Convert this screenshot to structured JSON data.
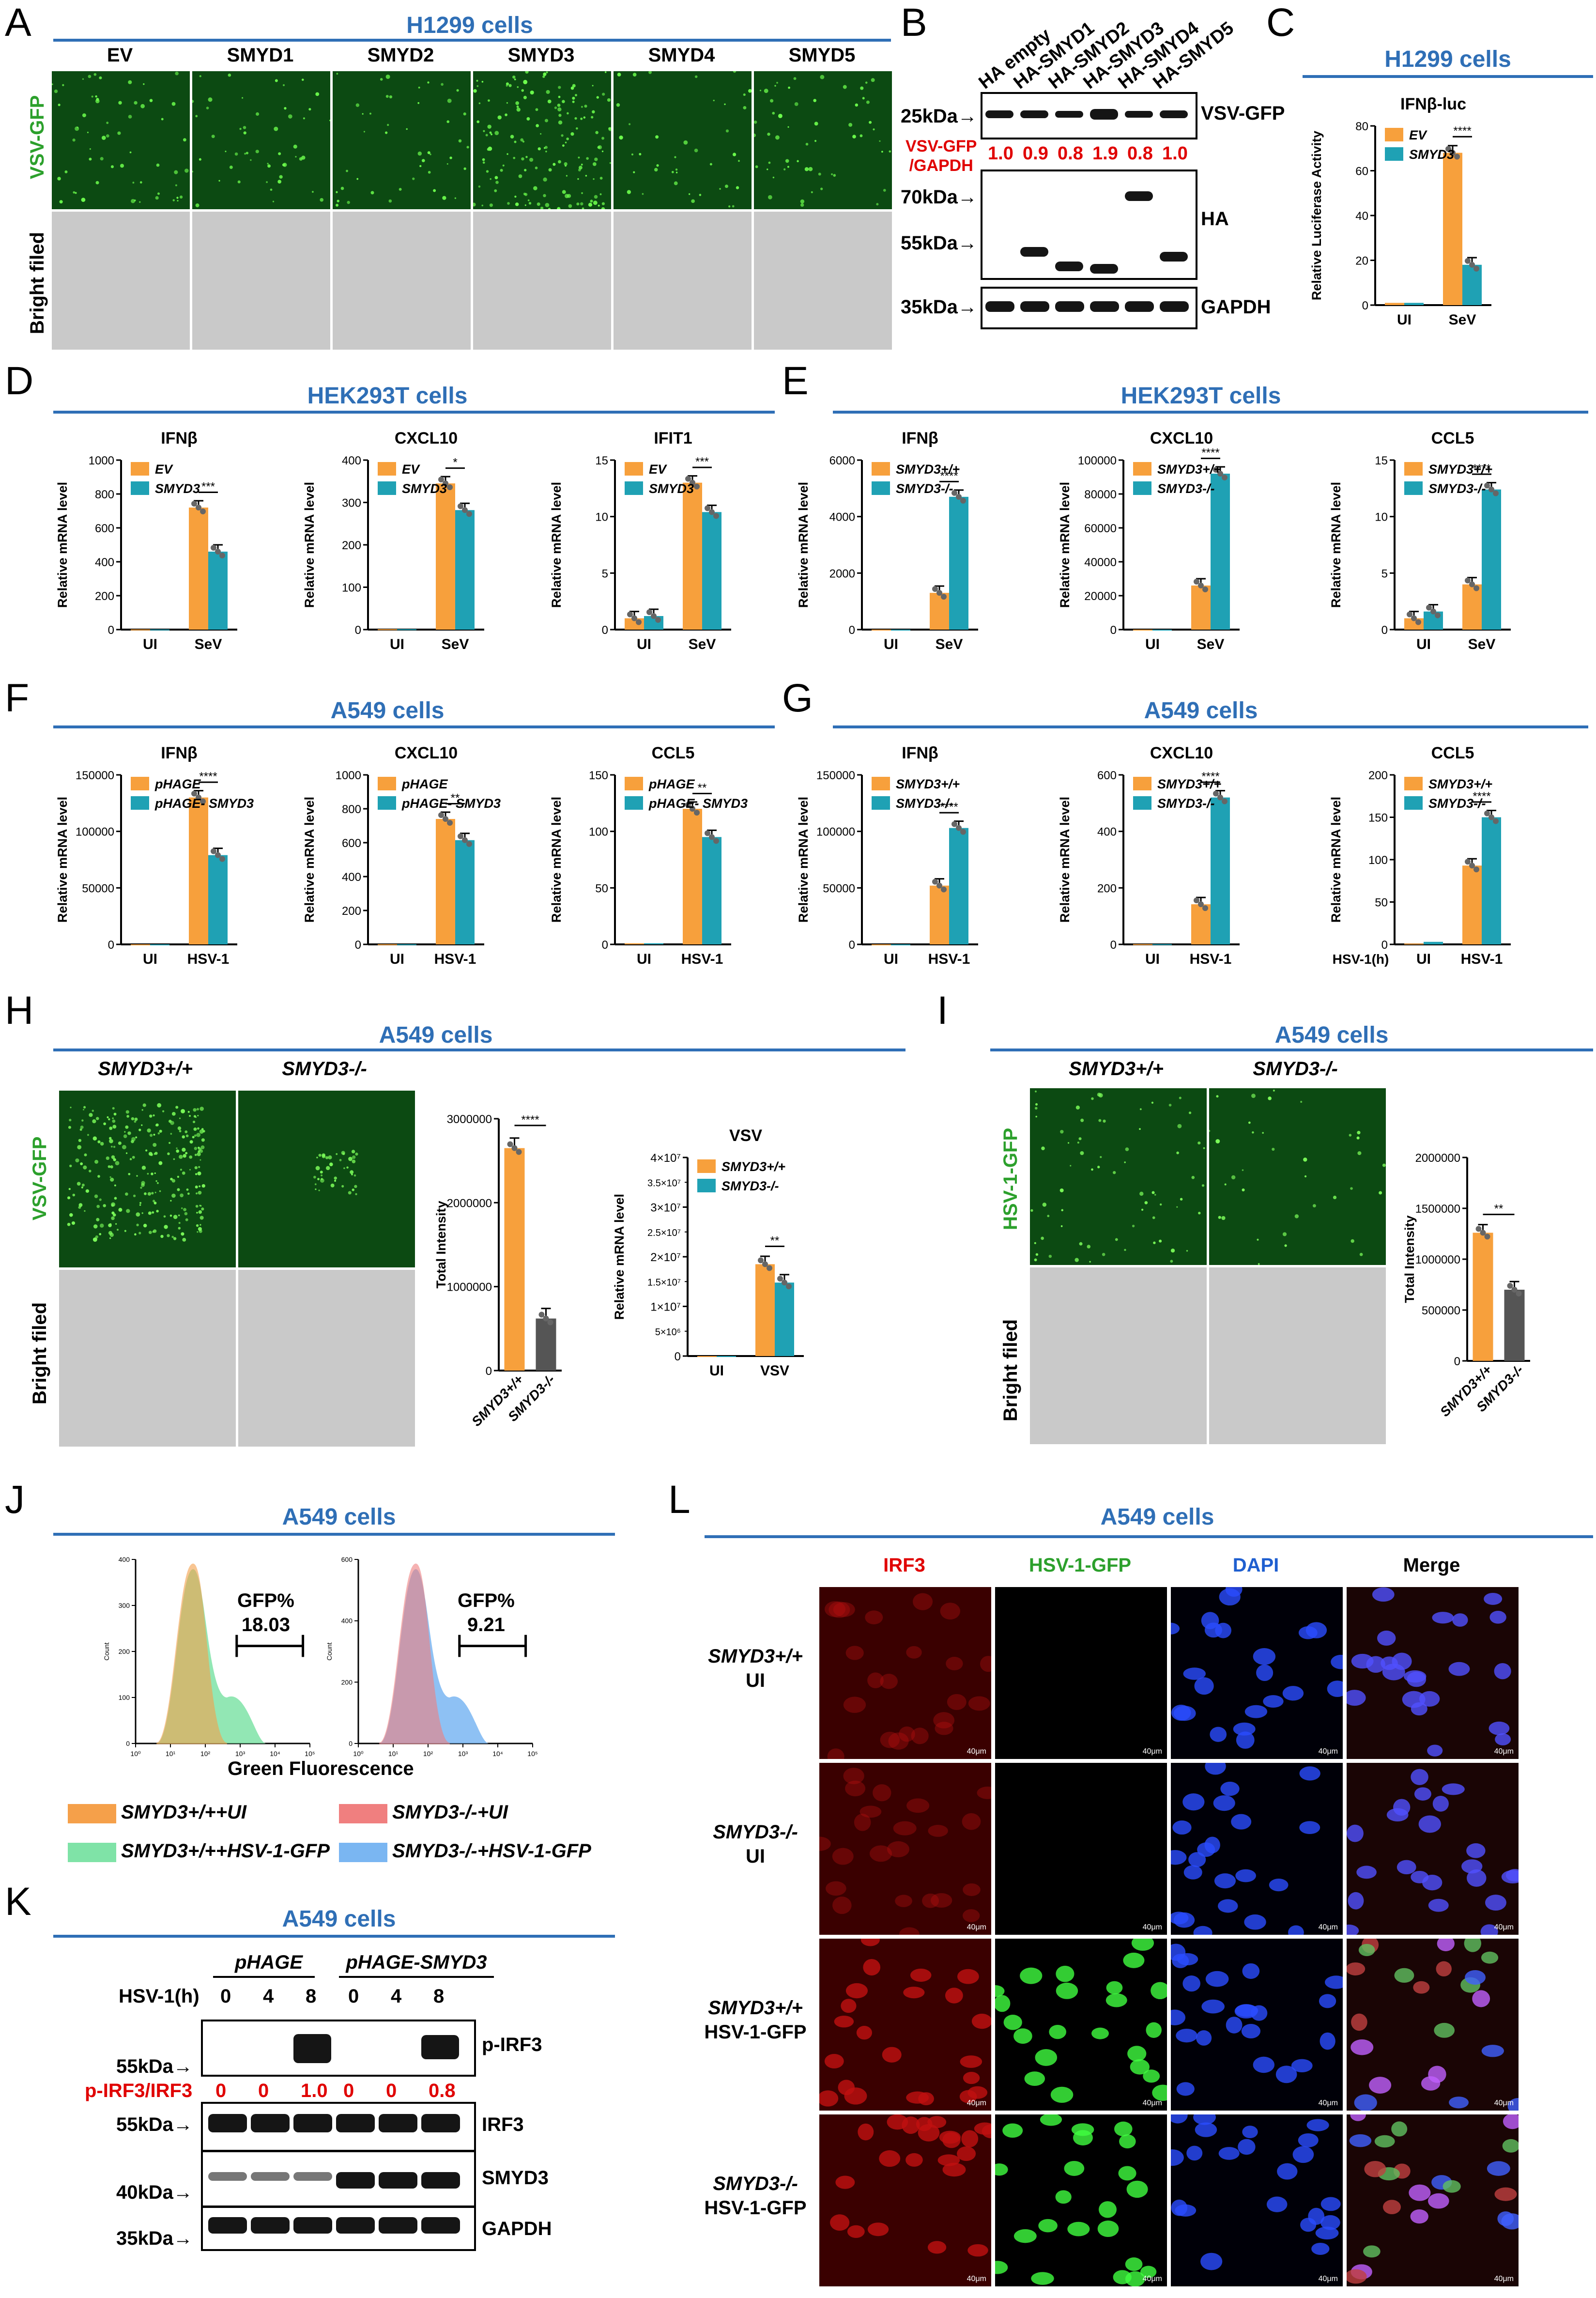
{
  "panels": [
    "A",
    "B",
    "C",
    "D",
    "E",
    "F",
    "G",
    "H",
    "I",
    "J",
    "K",
    "L"
  ],
  "titles": {
    "A": "H1299 cells",
    "C": "H1299 cells",
    "D": "HEK293T cells",
    "E": "HEK293T cells",
    "F": "A549 cells",
    "G": "A549 cells",
    "H": "A549 cells",
    "I": "A549 cells",
    "J": "A549 cells",
    "K": "A549 cells",
    "L": "A549 cells"
  },
  "panelA": {
    "columns": [
      "EV",
      "SMYD1",
      "SMYD2",
      "SMYD3",
      "SMYD4",
      "SMYD5"
    ],
    "row1": "VSV-GFP",
    "row2": "Bright filed"
  },
  "panelB": {
    "lanes": [
      "HA empty",
      "HA-SMYD1",
      "HA-SMYD2",
      "HA-SMYD3",
      "HA-SMYD4",
      "HA-SMYD5"
    ],
    "mw": [
      "25kDa",
      "70kDa",
      "55kDa",
      "35kDa"
    ],
    "labels": [
      "VSV-GFP",
      "HA",
      "GAPDH"
    ],
    "ratio_label": "VSV-GFP /GAPDH",
    "ratio_l1": "VSV-GFP",
    "ratio_l2": "/GAPDH",
    "ratios": [
      "1.0",
      "0.9",
      "0.8",
      "1.9",
      "0.8",
      "1.0"
    ]
  },
  "panelH": {
    "col1": "SMYD3+/+",
    "col2": "SMYD3-/-",
    "row1": "VSV-GFP",
    "row2": "Bright filed"
  },
  "panelI": {
    "col1": "SMYD3+/+",
    "col2": "SMYD3-/-",
    "row1": "HSV-1-GFP",
    "row2": "Bright filed"
  },
  "panelJ": {
    "gfp1": "GFP%",
    "val1": "18.03",
    "gfp2": "GFP%",
    "val2": "9.21",
    "xlabel": "Green Fluorescence",
    "ylabel": "Count",
    "legend": [
      "SMYD3+/++UI",
      "SMYD3-/-+UI",
      "SMYD3+/++HSV-1-GFP",
      "SMYD3-/-+HSV-1-GFP"
    ],
    "legend_colors": [
      "#f5a04a",
      "#f07f7f",
      "#7fe3a7",
      "#7ab6f2"
    ],
    "yticks1": [
      "0",
      "100",
      "200",
      "300",
      "400"
    ],
    "yticks2": [
      "0",
      "200",
      "400",
      "600"
    ]
  },
  "panelK": {
    "groups": [
      "pHAGE",
      "pHAGE-SMYD3"
    ],
    "hsv_label": "HSV-1(h)",
    "times": [
      "0",
      "4",
      "8",
      "0",
      "4",
      "8"
    ],
    "labels": [
      "p-IRF3",
      "IRF3",
      "SMYD3",
      "GAPDH"
    ],
    "mw": [
      "55kDa",
      "55kDa",
      "40kDa",
      "35kDa"
    ],
    "ratio_label": "p-IRF3/IRF3",
    "ratios": [
      "0",
      "0",
      "1.0",
      "0",
      "0",
      "0.8"
    ]
  },
  "panelL": {
    "columns": [
      "IRF3",
      "HSV-1-GFP",
      "DAPI",
      "Merge"
    ],
    "column_colors": [
      "#e00000",
      "#2ca02c",
      "#1f5fd0",
      "#000000"
    ],
    "rows": [
      [
        "SMYD3+/+",
        "UI"
      ],
      [
        "SMYD3-/-",
        "UI"
      ],
      [
        "SMYD3+/+",
        "HSV-1-GFP"
      ],
      [
        "SMYD3-/-",
        "HSV-1-GFP"
      ]
    ],
    "scale": "40μm"
  },
  "chart_data": [
    {
      "panel": "C",
      "type": "bar",
      "title": "IFNβ-luc",
      "ylabel": "Relative Luciferase Activity",
      "categories": [
        "UI",
        "SeV"
      ],
      "ylim": [
        0,
        80
      ],
      "yticks": [
        0,
        20,
        40,
        60,
        80
      ],
      "series": [
        {
          "name": "EV",
          "values": [
            1,
            68
          ]
        },
        {
          "name": "SMYD3",
          "values": [
            1,
            18
          ]
        }
      ],
      "sig": "****"
    },
    {
      "panel": "D",
      "type": "bar",
      "title": "IFNβ",
      "ylabel": "Relative mRNA level",
      "categories": [
        "UI",
        "SeV"
      ],
      "ylim": [
        0,
        1000
      ],
      "yticks": [
        0,
        200,
        400,
        600,
        800,
        1000
      ],
      "series": [
        {
          "name": "EV",
          "values": [
            1,
            720
          ]
        },
        {
          "name": "SMYD3",
          "values": [
            1,
            460
          ]
        }
      ],
      "sig": "***"
    },
    {
      "panel": "D",
      "type": "bar",
      "title": "CXCL10",
      "ylabel": "Relative mRNA level",
      "categories": [
        "UI",
        "SeV"
      ],
      "ylim": [
        0,
        400
      ],
      "yticks": [
        0,
        100,
        200,
        300,
        400
      ],
      "series": [
        {
          "name": "EV",
          "values": [
            1,
            345
          ]
        },
        {
          "name": "SMYD3",
          "values": [
            1,
            282
          ]
        }
      ],
      "sig": "*"
    },
    {
      "panel": "D",
      "type": "bar",
      "title": "IFIT1",
      "ylabel": "Relative mRNA level",
      "categories": [
        "UI",
        "SeV"
      ],
      "ylim": [
        0,
        15
      ],
      "yticks": [
        0,
        5,
        10,
        15
      ],
      "series": [
        {
          "name": "EV",
          "values": [
            1,
            13
          ]
        },
        {
          "name": "SMYD3",
          "values": [
            1.2,
            10.4
          ]
        }
      ],
      "sig": "***"
    },
    {
      "panel": "E",
      "type": "bar",
      "title": "IFNβ",
      "ylabel": "Relative mRNA level",
      "categories": [
        "UI",
        "SeV"
      ],
      "ylim": [
        0,
        6000
      ],
      "yticks": [
        0,
        2000,
        4000,
        6000
      ],
      "series": [
        {
          "name": "SMYD3+/+",
          "values": [
            1,
            1300
          ]
        },
        {
          "name": "SMYD3-/-",
          "values": [
            1,
            4700
          ]
        }
      ],
      "sig": "****"
    },
    {
      "panel": "E",
      "type": "bar",
      "title": "CXCL10",
      "ylabel": "Relative mRNA level",
      "categories": [
        "UI",
        "SeV"
      ],
      "ylim": [
        0,
        100000
      ],
      "yticks": [
        0,
        20000,
        40000,
        60000,
        80000,
        100000
      ],
      "series": [
        {
          "name": "SMYD3+/+",
          "values": [
            1,
            26000
          ]
        },
        {
          "name": "SMYD3-/-",
          "values": [
            1,
            92000
          ]
        }
      ],
      "sig": "****"
    },
    {
      "panel": "E",
      "type": "bar",
      "title": "CCL5",
      "ylabel": "Relative mRNA level",
      "categories": [
        "UI",
        "SeV"
      ],
      "ylim": [
        0,
        15
      ],
      "yticks": [
        0,
        5,
        10,
        15
      ],
      "series": [
        {
          "name": "SMYD3+/+",
          "values": [
            1,
            4
          ]
        },
        {
          "name": "SMYD3-/-",
          "values": [
            1.6,
            12.4
          ]
        }
      ],
      "sig": "****"
    },
    {
      "panel": "F",
      "type": "bar",
      "title": "IFNβ",
      "ylabel": "Relative mRNA level",
      "categories": [
        "UI",
        "HSV-1"
      ],
      "ylim": [
        0,
        150000
      ],
      "yticks": [
        0,
        50000,
        100000,
        150000
      ],
      "series": [
        {
          "name": "pHAGE",
          "values": [
            1,
            130000
          ]
        },
        {
          "name": "pHAGE- SMYD3",
          "values": [
            1,
            79000
          ]
        }
      ],
      "sig": "****"
    },
    {
      "panel": "F",
      "type": "bar",
      "title": "CXCL10",
      "ylabel": "Relative mRNA level",
      "categories": [
        "UI",
        "HSV-1"
      ],
      "ylim": [
        0,
        1000
      ],
      "yticks": [
        0,
        200,
        400,
        600,
        800,
        1000
      ],
      "series": [
        {
          "name": "pHAGE",
          "values": [
            1,
            740
          ]
        },
        {
          "name": "pHAGE- SMYD3",
          "values": [
            1,
            615
          ]
        }
      ],
      "sig": "**"
    },
    {
      "panel": "F",
      "type": "bar",
      "title": "CCL5",
      "ylabel": "Relative mRNA level",
      "categories": [
        "UI",
        "HSV-1"
      ],
      "ylim": [
        0,
        150
      ],
      "yticks": [
        0,
        50,
        100,
        150
      ],
      "series": [
        {
          "name": "pHAGE",
          "values": [
            1,
            120
          ]
        },
        {
          "name": "pHAGE- SMYD3",
          "values": [
            1,
            95
          ]
        }
      ],
      "sig": "**"
    },
    {
      "panel": "G",
      "type": "bar",
      "title": "IFNβ",
      "ylabel": "Relative mRNA level",
      "categories": [
        "UI",
        "HSV-1"
      ],
      "ylim": [
        0,
        150000
      ],
      "yticks": [
        0,
        50000,
        100000,
        150000
      ],
      "series": [
        {
          "name": "SMYD3+/+",
          "values": [
            1,
            52000
          ]
        },
        {
          "name": "SMYD3-/-",
          "values": [
            1,
            103000
          ]
        }
      ],
      "sig": "****"
    },
    {
      "panel": "G",
      "type": "bar",
      "title": "CXCL10",
      "ylabel": "Relative mRNA level",
      "categories": [
        "UI",
        "HSV-1"
      ],
      "ylim": [
        0,
        600
      ],
      "yticks": [
        0,
        200,
        400,
        600
      ],
      "series": [
        {
          "name": "SMYD3+/+",
          "values": [
            1,
            142
          ]
        },
        {
          "name": "SMYD3-/-",
          "values": [
            1,
            520
          ]
        }
      ],
      "sig": "****"
    },
    {
      "panel": "G",
      "type": "bar",
      "title": "CCL5",
      "ylabel": "Relative mRNA level",
      "categories": [
        "UI",
        "HSV-1"
      ],
      "xlabel": "HSV-1(h)",
      "ylim": [
        0,
        200
      ],
      "yticks": [
        0,
        50,
        100,
        150,
        200
      ],
      "series": [
        {
          "name": "SMYD3+/+",
          "values": [
            1,
            93
          ]
        },
        {
          "name": "SMYD3-/-",
          "values": [
            3,
            150
          ]
        }
      ],
      "sig": "****"
    },
    {
      "panel": "H",
      "type": "bar",
      "ylabel": "Total Intensity",
      "categories": [
        "SMYD3+/+",
        "SMYD3-/-"
      ],
      "ylim": [
        0,
        3000000
      ],
      "yticks": [
        0,
        1000000,
        2000000,
        3000000
      ],
      "series": [
        {
          "name": "",
          "values": [
            2650000,
            620000
          ]
        }
      ],
      "sig": "****",
      "single": true
    },
    {
      "panel": "H",
      "type": "bar",
      "title": "VSV",
      "ylabel": "Relative mRNA level",
      "categories": [
        "UI",
        "VSV"
      ],
      "ylim": [
        0,
        40000000
      ],
      "yticks": [
        0,
        10000000,
        20000000,
        30000000,
        40000000
      ],
      "ytick_labels": [
        "0",
        "1×10⁷",
        "2×10⁷",
        "3×10⁷",
        "4×10⁷"
      ],
      "ytick_minor": [
        "5×10⁶",
        "1.5×10⁷",
        "2.5×10⁷",
        "3.5×10⁷"
      ],
      "series": [
        {
          "name": "SMYD3+/+",
          "values": [
            1,
            18500000
          ]
        },
        {
          "name": "SMYD3-/-",
          "values": [
            1,
            14800000
          ]
        }
      ],
      "sig": "**"
    },
    {
      "panel": "I",
      "type": "bar",
      "ylabel": "Total Intensity",
      "categories": [
        "SMYD3+/+",
        "SMYD3-/-"
      ],
      "ylim": [
        0,
        2000000
      ],
      "yticks": [
        0,
        500000,
        1000000,
        1500000,
        2000000
      ],
      "series": [
        {
          "name": "",
          "values": [
            1260000,
            700000
          ]
        }
      ],
      "sig": "**",
      "single": true
    }
  ]
}
